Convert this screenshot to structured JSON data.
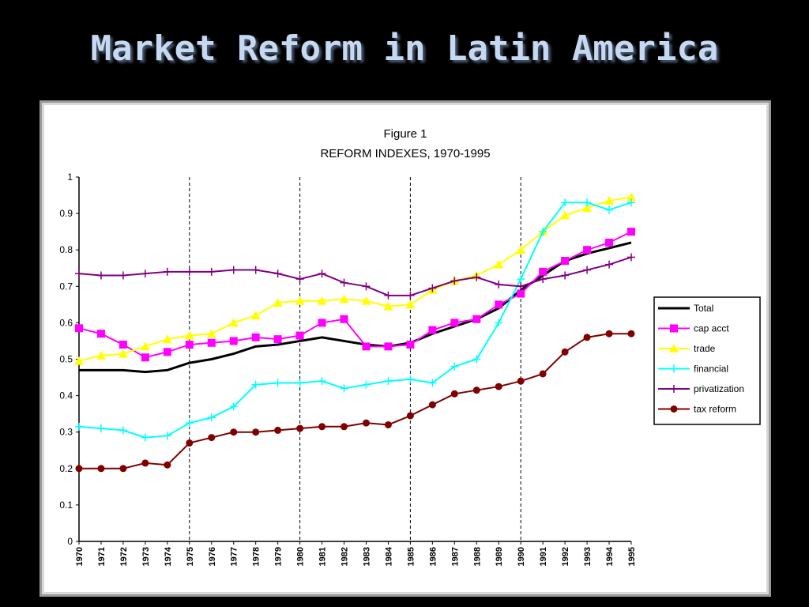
{
  "slide": {
    "title": "Market Reform in Latin America"
  },
  "chart_data": {
    "type": "line",
    "title": "Figure 1",
    "subtitle": "REFORM INDEXES, 1970-1995",
    "xlabel": "",
    "ylabel": "",
    "ylim": [
      0,
      1
    ],
    "y_ticks": [
      "0",
      "0.1",
      "0.2",
      "0.3",
      "0.4",
      "0.5",
      "0.6",
      "0.7",
      "0.8",
      "0.9",
      "1"
    ],
    "categories": [
      "1970",
      "1971",
      "1972",
      "1973",
      "1974",
      "1975",
      "1976",
      "1977",
      "1978",
      "1979",
      "1980",
      "1981",
      "1982",
      "1983",
      "1984",
      "1985",
      "1986",
      "1987",
      "1988",
      "1989",
      "1990",
      "1991",
      "1992",
      "1993",
      "1994",
      "1995"
    ],
    "vertical_markers": [
      "1975",
      "1980",
      "1985",
      "1990"
    ],
    "grid": false,
    "legend_position": "right",
    "series": [
      {
        "name": "Total",
        "color": "#000000",
        "marker": "none",
        "values": [
          0.47,
          0.47,
          0.47,
          0.465,
          0.47,
          0.49,
          0.5,
          0.515,
          0.535,
          0.54,
          0.55,
          0.56,
          0.55,
          0.54,
          0.535,
          0.545,
          0.57,
          0.59,
          0.61,
          0.64,
          0.69,
          0.73,
          0.77,
          0.79,
          0.805,
          0.82
        ]
      },
      {
        "name": "cap acct",
        "color": "#ff00ff",
        "marker": "square",
        "values": [
          0.585,
          0.57,
          0.54,
          0.505,
          0.52,
          0.54,
          0.545,
          0.55,
          0.56,
          0.555,
          0.565,
          0.6,
          0.61,
          0.535,
          0.535,
          0.54,
          0.58,
          0.6,
          0.61,
          0.65,
          0.68,
          0.74,
          0.77,
          0.8,
          0.82,
          0.85
        ]
      },
      {
        "name": "trade",
        "color": "#ffff00",
        "marker": "triangle",
        "values": [
          0.495,
          0.51,
          0.515,
          0.535,
          0.555,
          0.565,
          0.57,
          0.6,
          0.62,
          0.655,
          0.66,
          0.66,
          0.665,
          0.66,
          0.645,
          0.65,
          0.69,
          0.715,
          0.73,
          0.76,
          0.8,
          0.85,
          0.895,
          0.915,
          0.935,
          0.945
        ]
      },
      {
        "name": "financial",
        "color": "#00ffff",
        "marker": "plus",
        "values": [
          0.315,
          0.31,
          0.305,
          0.285,
          0.29,
          0.325,
          0.34,
          0.37,
          0.43,
          0.435,
          0.435,
          0.44,
          0.42,
          0.43,
          0.44,
          0.445,
          0.435,
          0.48,
          0.5,
          0.6,
          0.72,
          0.85,
          0.93,
          0.93,
          0.91,
          0.93
        ]
      },
      {
        "name": "privatization",
        "color": "#800080",
        "marker": "plus",
        "values": [
          0.735,
          0.73,
          0.73,
          0.735,
          0.74,
          0.74,
          0.74,
          0.745,
          0.745,
          0.735,
          0.72,
          0.735,
          0.71,
          0.7,
          0.675,
          0.675,
          0.695,
          0.715,
          0.725,
          0.705,
          0.7,
          0.72,
          0.73,
          0.745,
          0.76,
          0.78
        ]
      },
      {
        "name": "tax reform",
        "color": "#800000",
        "marker": "circle",
        "values": [
          0.2,
          0.2,
          0.2,
          0.215,
          0.21,
          0.27,
          0.285,
          0.3,
          0.3,
          0.305,
          0.31,
          0.315,
          0.315,
          0.325,
          0.32,
          0.345,
          0.375,
          0.405,
          0.415,
          0.425,
          0.44,
          0.46,
          0.52,
          0.56,
          0.57,
          0.57
        ]
      }
    ]
  }
}
